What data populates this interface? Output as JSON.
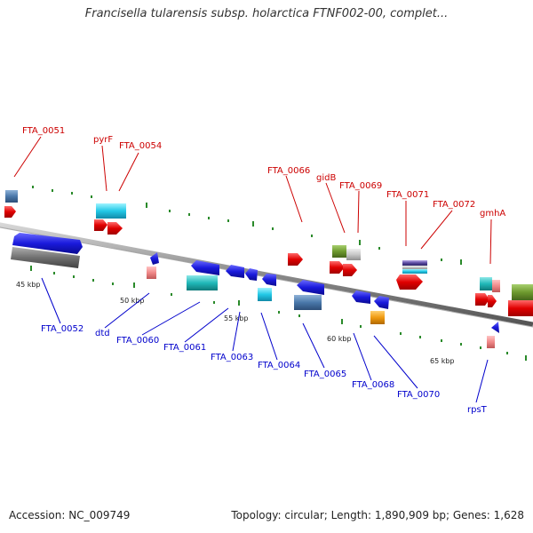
{
  "title": "Francisella tularensis subsp. holarctica FTNF002-00, complet...",
  "footer": {
    "accession": "Accession: NC_009749",
    "stats": "Topology: circular; Length: 1,890,909 bp; Genes: 1,628"
  },
  "scale_labels": [
    "45 kbp",
    "50 kbp",
    "55 kbp",
    "60 kbp",
    "65 kbp"
  ],
  "top_labels": [
    "FTA_0051",
    "pyrF",
    "FTA_0054",
    "FTA_0066",
    "gidB",
    "FTA_0069",
    "FTA_0071",
    "FTA_0072",
    "gmhA"
  ],
  "bottom_labels": [
    "FTA_0052",
    "dtd",
    "FTA_0060",
    "FTA_0061",
    "FTA_0063",
    "FTA_0064",
    "FTA_0065",
    "FTA_0068",
    "FTA_0070",
    "rpsT"
  ],
  "colors": {
    "forward_gene": "#e00000",
    "reverse_gene": "#1a1adc",
    "backbone": "#888888",
    "tick": "#2a8a2a"
  }
}
